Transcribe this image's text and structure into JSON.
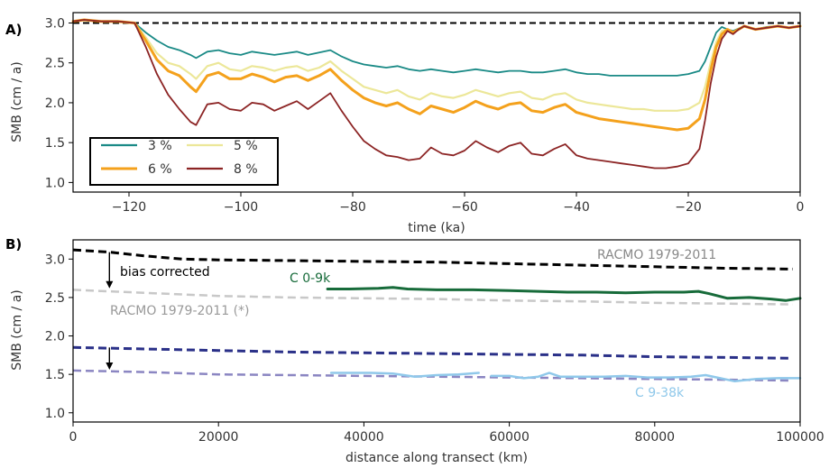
{
  "chart_data": [
    {
      "panel_label": "A)",
      "type": "line",
      "xlabel": "time (ka)",
      "ylabel": "SMB (cm / a)",
      "xlim": [
        -130,
        0
      ],
      "ylim": [
        0.88,
        3.13
      ],
      "xticks": [
        -120,
        -100,
        -80,
        -60,
        -40,
        -20,
        0
      ],
      "xtick_labels": [
        "−120",
        "−100",
        "−80",
        "−60",
        "−40",
        "−20",
        "0"
      ],
      "yticks": [
        1.0,
        1.5,
        2.0,
        2.5,
        3.0
      ],
      "ytick_labels": [
        "1.0",
        "1.5",
        "2.0",
        "2.5",
        "3.0"
      ],
      "reference_line": {
        "y": 3.0,
        "style": "dashed",
        "color": "#000000"
      },
      "legend": {
        "placement": "lower-left",
        "columns": 2,
        "order": [
          0,
          2,
          1,
          3
        ]
      },
      "x": [
        -130,
        -128,
        -125,
        -122,
        -119,
        -117,
        -115,
        -113,
        -111,
        -109,
        -108,
        -106,
        -104,
        -102,
        -100,
        -98,
        -96,
        -94,
        -92,
        -90,
        -88,
        -86,
        -84,
        -82,
        -80,
        -78,
        -76,
        -74,
        -72,
        -70,
        -68,
        -66,
        -64,
        -62,
        -60,
        -58,
        -56,
        -54,
        -52,
        -50,
        -48,
        -46,
        -44,
        -42,
        -40,
        -38,
        -36,
        -34,
        -32,
        -30,
        -28,
        -26,
        -24,
        -22,
        -20,
        -18,
        -17,
        -16,
        -15,
        -14,
        -13,
        -12,
        -11,
        -10,
        -8,
        -6,
        -4,
        -2,
        0
      ],
      "series": [
        {
          "name": "3 %",
          "color": "#1a8a86",
          "width": 1.8,
          "values": [
            3.02,
            3.04,
            3.02,
            3.02,
            3.0,
            2.88,
            2.78,
            2.7,
            2.66,
            2.6,
            2.56,
            2.64,
            2.66,
            2.62,
            2.6,
            2.64,
            2.62,
            2.6,
            2.62,
            2.64,
            2.6,
            2.63,
            2.66,
            2.58,
            2.52,
            2.48,
            2.46,
            2.44,
            2.46,
            2.42,
            2.4,
            2.42,
            2.4,
            2.38,
            2.4,
            2.42,
            2.4,
            2.38,
            2.4,
            2.4,
            2.38,
            2.38,
            2.4,
            2.42,
            2.38,
            2.36,
            2.36,
            2.34,
            2.34,
            2.34,
            2.34,
            2.34,
            2.34,
            2.34,
            2.36,
            2.4,
            2.52,
            2.7,
            2.88,
            2.95,
            2.92,
            2.9,
            2.93,
            2.96,
            2.92,
            2.95,
            2.96,
            2.94,
            2.96
          ]
        },
        {
          "name": "5 %",
          "color": "#ece799",
          "width": 2.2,
          "values": [
            3.02,
            3.04,
            3.02,
            3.02,
            3.0,
            2.82,
            2.62,
            2.5,
            2.46,
            2.36,
            2.3,
            2.46,
            2.5,
            2.42,
            2.4,
            2.46,
            2.44,
            2.4,
            2.44,
            2.46,
            2.4,
            2.44,
            2.52,
            2.4,
            2.3,
            2.2,
            2.16,
            2.12,
            2.16,
            2.08,
            2.04,
            2.12,
            2.08,
            2.06,
            2.1,
            2.16,
            2.12,
            2.08,
            2.12,
            2.14,
            2.06,
            2.04,
            2.1,
            2.12,
            2.04,
            2.0,
            1.98,
            1.96,
            1.94,
            1.92,
            1.92,
            1.9,
            1.9,
            1.9,
            1.92,
            2.0,
            2.2,
            2.5,
            2.76,
            2.9,
            2.92,
            2.88,
            2.92,
            2.96,
            2.92,
            2.94,
            2.96,
            2.94,
            2.96
          ]
        },
        {
          "name": "6 %",
          "color": "#f4a11c",
          "width": 3.0,
          "values": [
            3.02,
            3.04,
            3.02,
            3.02,
            3.0,
            2.78,
            2.54,
            2.4,
            2.34,
            2.2,
            2.14,
            2.34,
            2.38,
            2.3,
            2.3,
            2.36,
            2.32,
            2.26,
            2.32,
            2.34,
            2.28,
            2.34,
            2.42,
            2.28,
            2.16,
            2.06,
            2.0,
            1.96,
            2.0,
            1.92,
            1.86,
            1.96,
            1.92,
            1.88,
            1.94,
            2.02,
            1.96,
            1.92,
            1.98,
            2.0,
            1.9,
            1.88,
            1.94,
            1.98,
            1.88,
            1.84,
            1.8,
            1.78,
            1.76,
            1.74,
            1.72,
            1.7,
            1.68,
            1.66,
            1.68,
            1.8,
            2.04,
            2.4,
            2.7,
            2.86,
            2.92,
            2.88,
            2.92,
            2.96,
            2.92,
            2.94,
            2.96,
            2.94,
            2.96
          ]
        },
        {
          "name": "8 %",
          "color": "#8c2424",
          "width": 1.8,
          "values": [
            3.02,
            3.04,
            3.02,
            3.02,
            3.0,
            2.7,
            2.36,
            2.1,
            1.92,
            1.76,
            1.72,
            1.98,
            2.0,
            1.92,
            1.9,
            2.0,
            1.98,
            1.9,
            1.96,
            2.02,
            1.92,
            2.02,
            2.12,
            1.9,
            1.7,
            1.52,
            1.42,
            1.34,
            1.32,
            1.28,
            1.3,
            1.44,
            1.36,
            1.34,
            1.4,
            1.52,
            1.44,
            1.38,
            1.46,
            1.5,
            1.36,
            1.34,
            1.42,
            1.48,
            1.34,
            1.3,
            1.28,
            1.26,
            1.24,
            1.22,
            1.2,
            1.18,
            1.18,
            1.2,
            1.24,
            1.42,
            1.78,
            2.24,
            2.58,
            2.8,
            2.9,
            2.86,
            2.92,
            2.96,
            2.92,
            2.94,
            2.96,
            2.94,
            2.96
          ]
        }
      ]
    },
    {
      "panel_label": "B)",
      "type": "line",
      "xlabel": "distance along transect (km)",
      "ylabel": "SMB (cm / a)",
      "xlim": [
        0,
        100000
      ],
      "ylim": [
        0.88,
        3.25
      ],
      "xticks": [
        0,
        20000,
        40000,
        60000,
        80000,
        100000
      ],
      "xtick_labels": [
        "0",
        "20000",
        "40000",
        "60000",
        "80000",
        "100000"
      ],
      "yticks": [
        1.0,
        1.5,
        2.0,
        2.5,
        3.0
      ],
      "ytick_labels": [
        "1.0",
        "1.5",
        "2.0",
        "2.5",
        "3.0"
      ],
      "series": [
        {
          "name": "RACMO 1979-2011",
          "color": "#000000",
          "dash": true,
          "width": 3,
          "x": [
            0,
            5000,
            10000,
            15000,
            20000,
            30000,
            40000,
            50000,
            60000,
            70000,
            80000,
            90000,
            99000
          ],
          "values": [
            3.12,
            3.09,
            3.04,
            3.0,
            2.99,
            2.98,
            2.97,
            2.96,
            2.94,
            2.92,
            2.9,
            2.88,
            2.87
          ]
        },
        {
          "name": "RACMO 1979-2011 (*)",
          "color": "#c8c8c8",
          "dash": true,
          "width": 2.5,
          "x": [
            0,
            10000,
            20000,
            30000,
            40000,
            50000,
            60000,
            70000,
            80000,
            90000,
            99000
          ],
          "values": [
            2.6,
            2.56,
            2.52,
            2.5,
            2.49,
            2.48,
            2.46,
            2.45,
            2.43,
            2.42,
            2.41
          ]
        },
        {
          "name": "C 0-9k",
          "color": "#176b3a",
          "dash": false,
          "width": 3,
          "x": [
            35000,
            38000,
            42000,
            44000,
            46000,
            50000,
            55000,
            60000,
            64000,
            68000,
            72000,
            76000,
            80000,
            84000,
            86000,
            87500,
            90000,
            93000,
            96000,
            98000,
            100000
          ],
          "values": [
            2.61,
            2.61,
            2.62,
            2.63,
            2.61,
            2.6,
            2.6,
            2.59,
            2.58,
            2.57,
            2.57,
            2.56,
            2.57,
            2.57,
            2.58,
            2.55,
            2.49,
            2.5,
            2.48,
            2.46,
            2.49
          ]
        },
        {
          "name": "",
          "color": "#2a3088",
          "dash": true,
          "width": 3,
          "x": [
            0,
            10000,
            20000,
            30000,
            40000,
            50000,
            60000,
            70000,
            80000,
            90000,
            99000
          ],
          "values": [
            1.85,
            1.83,
            1.81,
            1.79,
            1.78,
            1.77,
            1.76,
            1.75,
            1.73,
            1.72,
            1.71
          ]
        },
        {
          "name": "",
          "color": "#8b86c2",
          "dash": true,
          "width": 2.5,
          "x": [
            0,
            10000,
            20000,
            30000,
            40000,
            50000,
            60000,
            70000,
            80000,
            90000,
            99000
          ],
          "values": [
            1.55,
            1.53,
            1.5,
            1.49,
            1.48,
            1.47,
            1.46,
            1.45,
            1.44,
            1.43,
            1.42
          ]
        },
        {
          "name": "C 9-38k",
          "color": "#8fc8ea",
          "dash": false,
          "width": 2.5,
          "x": [
            35500,
            38000,
            41000,
            44000,
            47000,
            50000,
            53000,
            55800,
            null,
            57500,
            60000,
            62000,
            64000,
            65500,
            67000,
            70000,
            73000,
            76000,
            79000,
            82000,
            85000,
            87000,
            89000,
            91000,
            94000,
            97000,
            100000
          ],
          "values": [
            1.52,
            1.52,
            1.52,
            1.51,
            1.47,
            1.49,
            1.5,
            1.52,
            null,
            1.48,
            1.48,
            1.45,
            1.47,
            1.52,
            1.47,
            1.47,
            1.47,
            1.48,
            1.46,
            1.46,
            1.47,
            1.49,
            1.45,
            1.41,
            1.44,
            1.45,
            1.45
          ]
        }
      ],
      "annotations": [
        {
          "text": "RACMO 1979-2011",
          "color": "#888888"
        },
        {
          "text": "bias corrected",
          "color": "#000000"
        },
        {
          "text": "C 0-9k",
          "color": "#176b3a"
        },
        {
          "text": "RACMO 1979-2011 (*)",
          "color": "#999999"
        },
        {
          "text": "C 9-38k",
          "color": "#8fc8ea"
        }
      ],
      "arrows": [
        {
          "x": 5000,
          "y_from": 3.09,
          "y_to": 2.62
        },
        {
          "x": 5000,
          "y_from": 1.85,
          "y_to": 1.56
        }
      ]
    }
  ]
}
